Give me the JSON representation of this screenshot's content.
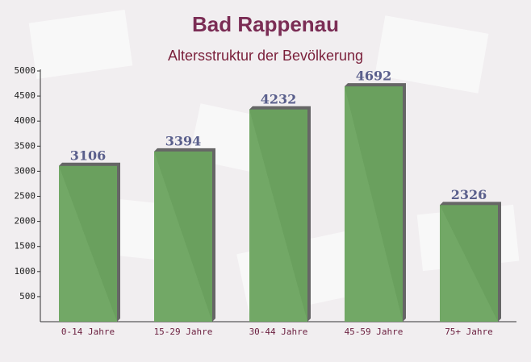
{
  "chart_data": {
    "type": "bar",
    "title": "Bad Rappenau",
    "subtitle": "Altersstruktur der Bevölkerung",
    "categories": [
      "0-14 Jahre",
      "15-29 Jahre",
      "30-44 Jahre",
      "45-59 Jahre",
      "75+ Jahre"
    ],
    "values": [
      3106,
      3394,
      4232,
      4692,
      2326
    ],
    "color": "#6aa35e",
    "ylim": [
      0,
      5000
    ],
    "yticks": [
      500,
      1000,
      1500,
      2000,
      2500,
      3000,
      3500,
      4000,
      4500,
      5000
    ],
    "grid": false
  }
}
